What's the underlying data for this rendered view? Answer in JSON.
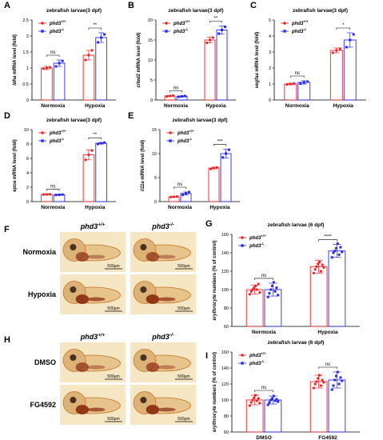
{
  "colors": {
    "wt": "#e8262a",
    "ko": "#2a2aee",
    "axis": "#000000",
    "photo_bg": "#f5e6c4",
    "larva": "#c8752a",
    "blood": "#8a2a10"
  },
  "legend": {
    "wt_label": "phd3+/+",
    "ko_label": "phd3-/-"
  },
  "chart_data": [
    {
      "panel": "A",
      "type": "bar",
      "title": "zebrafish larvae(3 dpf)",
      "ylabel": "ldha mRNA level (fold)",
      "categories": [
        "Normoxia",
        "Hypoxia"
      ],
      "ylim": [
        0,
        2.5
      ],
      "yticks": [
        0,
        0.5,
        1,
        1.5,
        2,
        2.5
      ],
      "yticklabels": [
        "0",
        "0.5",
        "1",
        "1.5",
        "2",
        "2.5"
      ],
      "series": [
        {
          "name": "phd3+/+",
          "values": [
            1.0,
            1.4
          ],
          "errors": [
            0.05,
            0.15
          ],
          "points": [
            [
              0.98,
              1.0,
              1.02
            ],
            [
              1.25,
              1.4,
              1.55
            ]
          ]
        },
        {
          "name": "phd3-/-",
          "values": [
            1.15,
            1.95
          ],
          "errors": [
            0.1,
            0.15
          ],
          "points": [
            [
              1.05,
              1.15,
              1.22
            ],
            [
              1.8,
              1.95,
              2.05
            ]
          ]
        }
      ],
      "significance": [
        "ns",
        "**"
      ]
    },
    {
      "panel": "B",
      "type": "bar",
      "title": "zebrafish larvae(3 dpf)",
      "ylabel": "cited2 mRNA level (fold)",
      "categories": [
        "Normoxia",
        "Hypoxia"
      ],
      "ylim": [
        0,
        20
      ],
      "yticks": [
        0,
        5,
        10,
        15,
        20
      ],
      "yticklabels": [
        "0",
        "5",
        "10",
        "15",
        "20"
      ],
      "series": [
        {
          "name": "phd3+/+",
          "values": [
            1.0,
            15.0
          ],
          "errors": [
            0.1,
            0.7
          ],
          "points": [
            [
              0.9,
              1.0,
              1.1
            ],
            [
              14.3,
              15.0,
              15.6
            ]
          ]
        },
        {
          "name": "phd3-/-",
          "values": [
            0.9,
            17.5
          ],
          "errors": [
            0.1,
            1.0
          ],
          "points": [
            [
              0.8,
              0.9,
              1.0
            ],
            [
              16.6,
              17.5,
              18.3
            ]
          ]
        }
      ],
      "significance": [
        "ns",
        "**"
      ]
    },
    {
      "panel": "C",
      "type": "bar",
      "title": "zebrafish larvae(3 dpf)",
      "ylabel": "vegfaa mRNA level (fold)",
      "categories": [
        "Normoxia",
        "Hypoxia"
      ],
      "ylim": [
        0,
        5
      ],
      "yticks": [
        0,
        1,
        2,
        3,
        4,
        5
      ],
      "yticklabels": [
        "0",
        "1",
        "2",
        "3",
        "4",
        "5"
      ],
      "series": [
        {
          "name": "phd3+/+",
          "values": [
            1.0,
            3.1
          ],
          "errors": [
            0.05,
            0.15
          ],
          "points": [
            [
              0.97,
              1.0,
              1.03
            ],
            [
              2.95,
              3.1,
              3.2
            ]
          ]
        },
        {
          "name": "phd3-/-",
          "values": [
            1.1,
            3.75
          ],
          "errors": [
            0.1,
            0.45
          ],
          "points": [
            [
              1.02,
              1.1,
              1.15
            ],
            [
              3.3,
              3.75,
              4.1
            ]
          ]
        }
      ],
      "significance": [
        "ns",
        "*"
      ]
    },
    {
      "panel": "D",
      "type": "bar",
      "title": "zebrafish larvae(3 dpf)",
      "ylabel": "epoa mRNA level (fold)",
      "categories": [
        "Normoxia",
        "Hypoxia"
      ],
      "ylim": [
        0,
        10
      ],
      "yticks": [
        0,
        2,
        4,
        6,
        8,
        10
      ],
      "yticklabels": [
        "0",
        "2",
        "4",
        "6",
        "8",
        "10"
      ],
      "series": [
        {
          "name": "phd3+/+",
          "values": [
            1.0,
            6.5
          ],
          "errors": [
            0.05,
            0.7
          ],
          "points": [
            [
              0.98,
              1.0,
              1.02
            ],
            [
              5.8,
              6.5,
              7.1
            ]
          ]
        },
        {
          "name": "phd3-/-",
          "values": [
            0.95,
            8.1
          ],
          "errors": [
            0.05,
            0.1
          ],
          "points": [
            [
              0.92,
              0.95,
              0.98
            ],
            [
              8.0,
              8.1,
              8.2
            ]
          ]
        }
      ],
      "significance": [
        "ns",
        "**"
      ]
    },
    {
      "panel": "E",
      "type": "bar",
      "title": "zebrafish larvae(3 dpf)",
      "ylabel": "il11a mRNA level (fold)",
      "categories": [
        "Normoxia",
        "Hypoxia"
      ],
      "ylim": [
        0,
        15
      ],
      "yticks": [
        0,
        5,
        10,
        15
      ],
      "yticklabels": [
        "0",
        "5",
        "10",
        "15"
      ],
      "series": [
        {
          "name": "phd3+/+",
          "values": [
            1.0,
            7.0
          ],
          "errors": [
            0.05,
            0.2
          ],
          "points": [
            [
              0.95,
              1.0,
              1.05
            ],
            [
              6.8,
              7.0,
              7.1
            ]
          ]
        },
        {
          "name": "phd3-/-",
          "values": [
            1.7,
            10.0
          ],
          "errors": [
            0.3,
            0.9
          ],
          "points": [
            [
              1.4,
              1.7,
              2.0
            ],
            [
              9.2,
              10.0,
              10.8
            ]
          ]
        }
      ],
      "significance": [
        "ns",
        "***"
      ]
    },
    {
      "panel": "G",
      "type": "bar",
      "title": "zebrafish larvae (6 dpf)",
      "ylabel": "erythrocyte numbers (% of control)",
      "categories": [
        "Normoxia",
        "Hypoxia"
      ],
      "ylim": [
        60,
        160
      ],
      "yticks": [
        60,
        80,
        100,
        120,
        140,
        160
      ],
      "yticklabels": [
        "60",
        "80",
        "100",
        "120",
        "140",
        "160"
      ],
      "series": [
        {
          "name": "phd3+/+",
          "values": [
            100,
            125
          ],
          "errors": [
            5,
            7
          ],
          "points": [
            [
              95,
              98,
              100,
              102,
              104,
              100,
              106,
              97
            ],
            [
              118,
              122,
              125,
              128,
              130,
              120,
              127,
              124
            ]
          ]
        },
        {
          "name": "phd3-/-",
          "values": [
            100,
            142
          ],
          "errors": [
            7,
            7
          ],
          "points": [
            [
              92,
              96,
              100,
              104,
              108,
              98,
              102,
              94
            ],
            [
              135,
              140,
              142,
              145,
              150,
              138,
              146,
              141
            ]
          ]
        }
      ],
      "significance": [
        "ns",
        "****"
      ]
    },
    {
      "panel": "I",
      "type": "bar",
      "title": "zebrafish larvae (6 dpf)",
      "ylabel": "erythrocyte numbers (% of control)",
      "categories": [
        "DMSO",
        "FG4592"
      ],
      "ylim": [
        60,
        160
      ],
      "yticks": [
        60,
        80,
        100,
        120,
        140,
        160
      ],
      "yticklabels": [
        "60",
        "80",
        "100",
        "120",
        "140",
        "160"
      ],
      "series": [
        {
          "name": "phd3+/+",
          "values": [
            100,
            123
          ],
          "errors": [
            6,
            8
          ],
          "points": [
            [
              93,
              97,
              100,
              103,
              106,
              99,
              102,
              96
            ],
            [
              115,
              120,
              123,
              127,
              131,
              118,
              125,
              122
            ]
          ]
        },
        {
          "name": "phd3-/-",
          "values": [
            100,
            125
          ],
          "errors": [
            5,
            10
          ],
          "points": [
            [
              94,
              97,
              100,
              102,
              105,
              99,
              101,
              98
            ],
            [
              113,
              118,
              125,
              130,
              135,
              120,
              128,
              124
            ]
          ]
        }
      ],
      "significance": [
        "ns",
        "ns"
      ]
    }
  ],
  "images": {
    "F": {
      "panel": "F",
      "columns": [
        "phd3+/+",
        "phd3-/-"
      ],
      "rows": [
        "Normoxia",
        "Hypoxia"
      ],
      "scale": "500μm"
    },
    "H": {
      "panel": "H",
      "columns": [
        "phd3+/+",
        "phd3-/-"
      ],
      "rows": [
        "DMSO",
        "FG4592"
      ],
      "scale": "500μm"
    }
  }
}
